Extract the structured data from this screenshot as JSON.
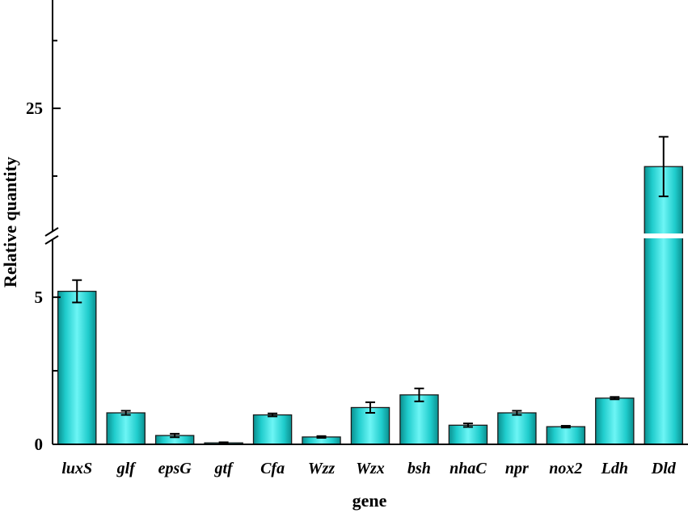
{
  "chart_data": {
    "type": "bar",
    "xlabel": "gene",
    "ylabel": "Relative quantity",
    "categories": [
      "luxS",
      "glf",
      "epsG",
      "gtf",
      "Cfa",
      "Wzz",
      "Wzx",
      "bsh",
      "nhaC",
      "npr",
      "nox2",
      "Ldh",
      "Dld"
    ],
    "values": [
      5.2,
      1.07,
      0.3,
      0.05,
      1.0,
      0.25,
      1.25,
      1.68,
      0.65,
      1.07,
      0.6,
      1.57,
      20.7
    ],
    "errors": [
      0.38,
      0.07,
      0.06,
      0.02,
      0.05,
      0.03,
      0.18,
      0.22,
      0.06,
      0.07,
      0.03,
      0.04,
      2.2
    ],
    "ylim": [
      0,
      33
    ],
    "axis_break": {
      "lower": [
        0,
        7
      ],
      "upper": [
        16,
        33
      ]
    },
    "yticks_labeled": [
      0,
      5,
      25
    ],
    "yticks_minor": [
      2.5,
      20,
      30
    ],
    "bar_color": "#1fcccc",
    "grid": false,
    "legend": "none"
  }
}
